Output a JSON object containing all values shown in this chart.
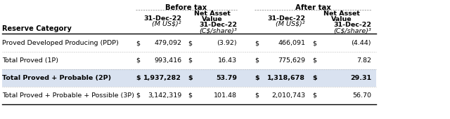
{
  "rows": [
    [
      "Proved Developed Producing (PDP)",
      "$",
      "479,092",
      "$",
      "(3.92)",
      "$",
      "466,091",
      "$",
      "(4.44)"
    ],
    [
      "Total Proved (1P)",
      "$",
      "993,416",
      "$",
      "16.43",
      "$",
      "775,629",
      "$",
      "7.82"
    ],
    [
      "Total Proved + Probable (2P)",
      "$",
      "1,937,282",
      "$",
      "53.79",
      "$",
      "1,318,678",
      "$",
      "29.31"
    ],
    [
      "Total Proved + Probable + Possible (3P)",
      "$",
      "3,142,319",
      "$",
      "101.48",
      "$",
      "2,010,743",
      "$",
      "56.70"
    ]
  ],
  "bold_rows": [
    2
  ],
  "shaded_rows": [
    2
  ],
  "bg_color": "#ffffff",
  "shade_color": "#d9e2f0",
  "font_color": "#000000",
  "font_size": 6.8
}
